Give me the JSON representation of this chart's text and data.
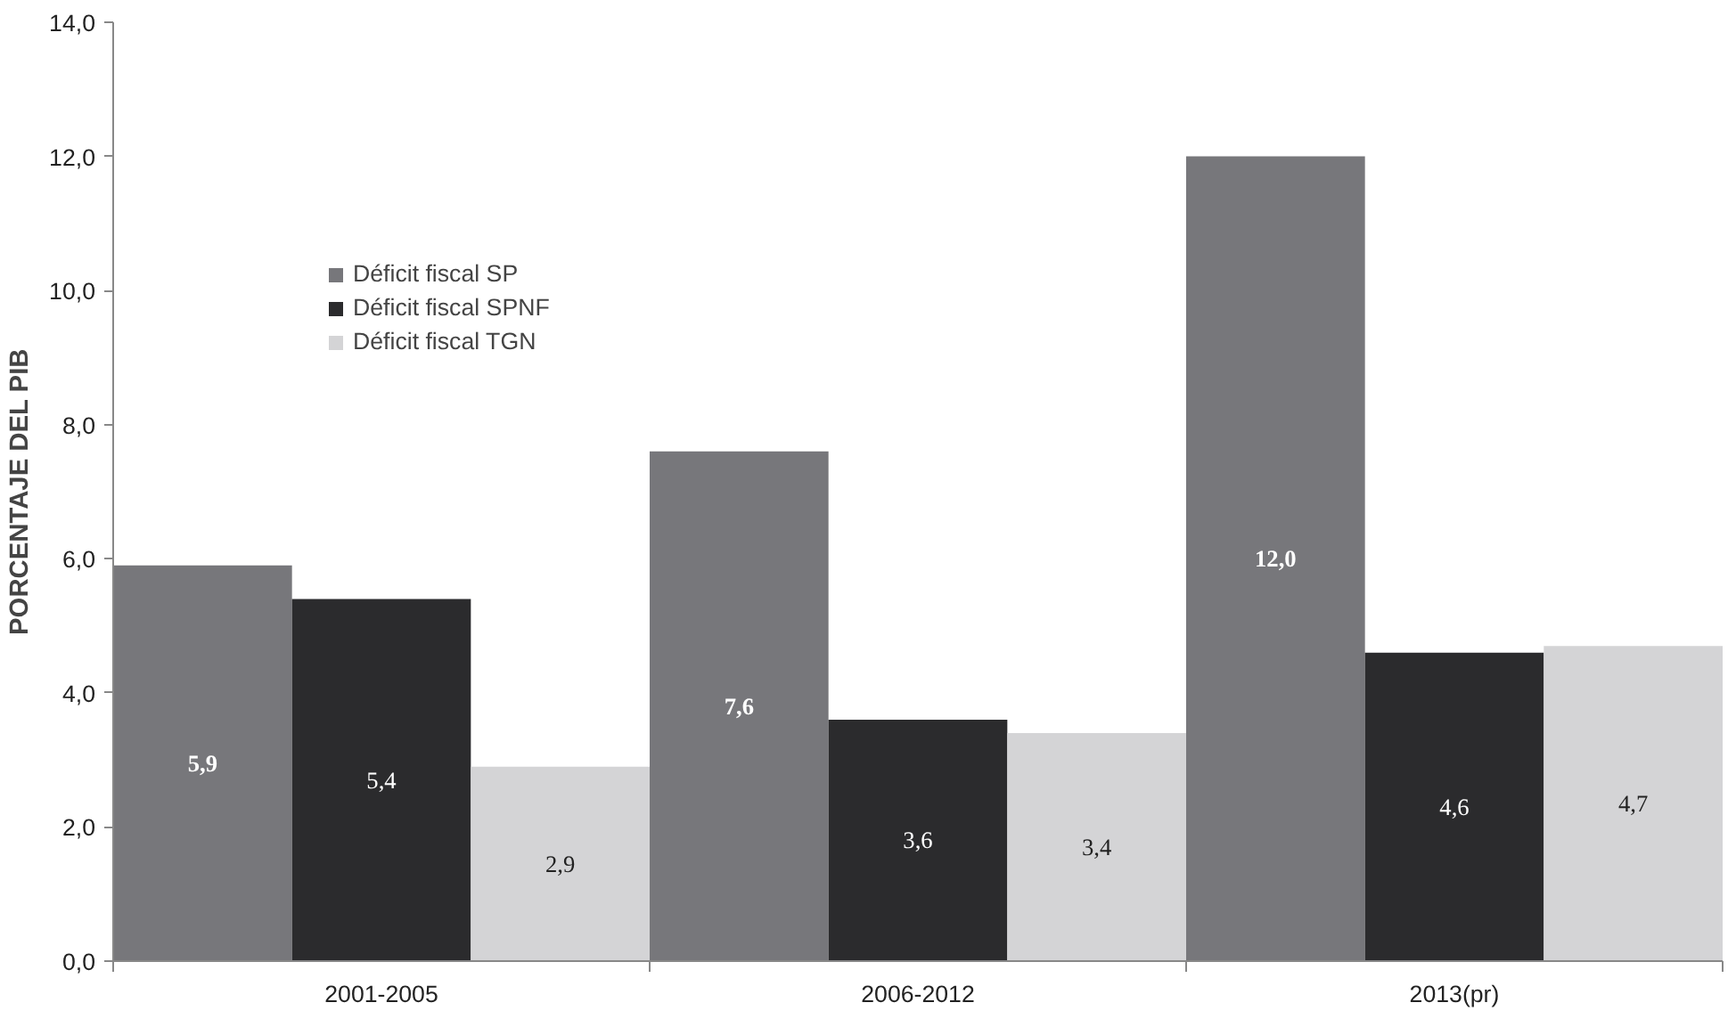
{
  "chart_data": {
    "type": "bar",
    "ylabel": "PORCENTAJE DEL PIB",
    "categories": [
      "2001-2005",
      "2006-2012",
      "2013(pr)"
    ],
    "series": [
      {
        "name": "Déficit fiscal SP",
        "color": "#77777b",
        "values": [
          5.9,
          7.6,
          12.0
        ],
        "value_labels": [
          "5,9",
          "7,6",
          "12,0"
        ]
      },
      {
        "name": "Déficit fiscal SPNF",
        "color": "#2b2b2d",
        "values": [
          5.4,
          3.6,
          4.6
        ],
        "value_labels": [
          "5,4",
          "3,6",
          "4,6"
        ]
      },
      {
        "name": "Déficit fiscal TGN",
        "color": "#d4d4d6",
        "values": [
          2.9,
          3.4,
          4.7
        ],
        "value_labels": [
          "2,9",
          "3,4",
          "4,7"
        ]
      }
    ],
    "ylim": [
      0,
      14
    ],
    "yticks": [
      {
        "value": 0,
        "label": "0,0"
      },
      {
        "value": 2,
        "label": "2,0"
      },
      {
        "value": 4,
        "label": "4,0"
      },
      {
        "value": 6,
        "label": "6,0"
      },
      {
        "value": 8,
        "label": "8,0"
      },
      {
        "value": 10,
        "label": "10,0"
      },
      {
        "value": 12,
        "label": "12,0"
      },
      {
        "value": 14,
        "label": "14,0"
      }
    ],
    "grid": false,
    "legend": "top left"
  }
}
